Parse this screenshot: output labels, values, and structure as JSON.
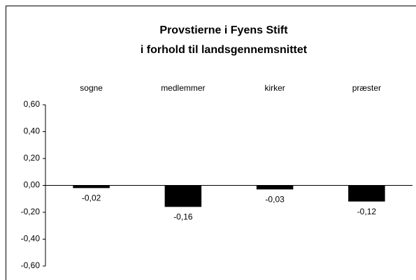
{
  "chart_data": {
    "type": "bar",
    "title": [
      "Provstierne i Fyens Stift",
      "i forhold til landsgennemsnittet"
    ],
    "categories": [
      "sogne",
      "medlemmer",
      "kirker",
      "præster"
    ],
    "values": [
      -0.02,
      -0.16,
      -0.03,
      -0.12
    ],
    "value_labels": [
      "-0,02",
      "-0,16",
      "-0,03",
      "-0,12"
    ],
    "color": "#000000",
    "ylim": [
      -0.6,
      0.6
    ],
    "yticks": [
      {
        "value": -0.6,
        "label": "-0,60"
      },
      {
        "value": -0.4,
        "label": "-0,40"
      },
      {
        "value": -0.2,
        "label": "-0,20"
      },
      {
        "value": 0,
        "label": "0,00"
      },
      {
        "value": 0.2,
        "label": "0,20"
      },
      {
        "value": 0.4,
        "label": "0,40"
      },
      {
        "value": 0.6,
        "label": "0,60"
      }
    ],
    "grid": false
  }
}
